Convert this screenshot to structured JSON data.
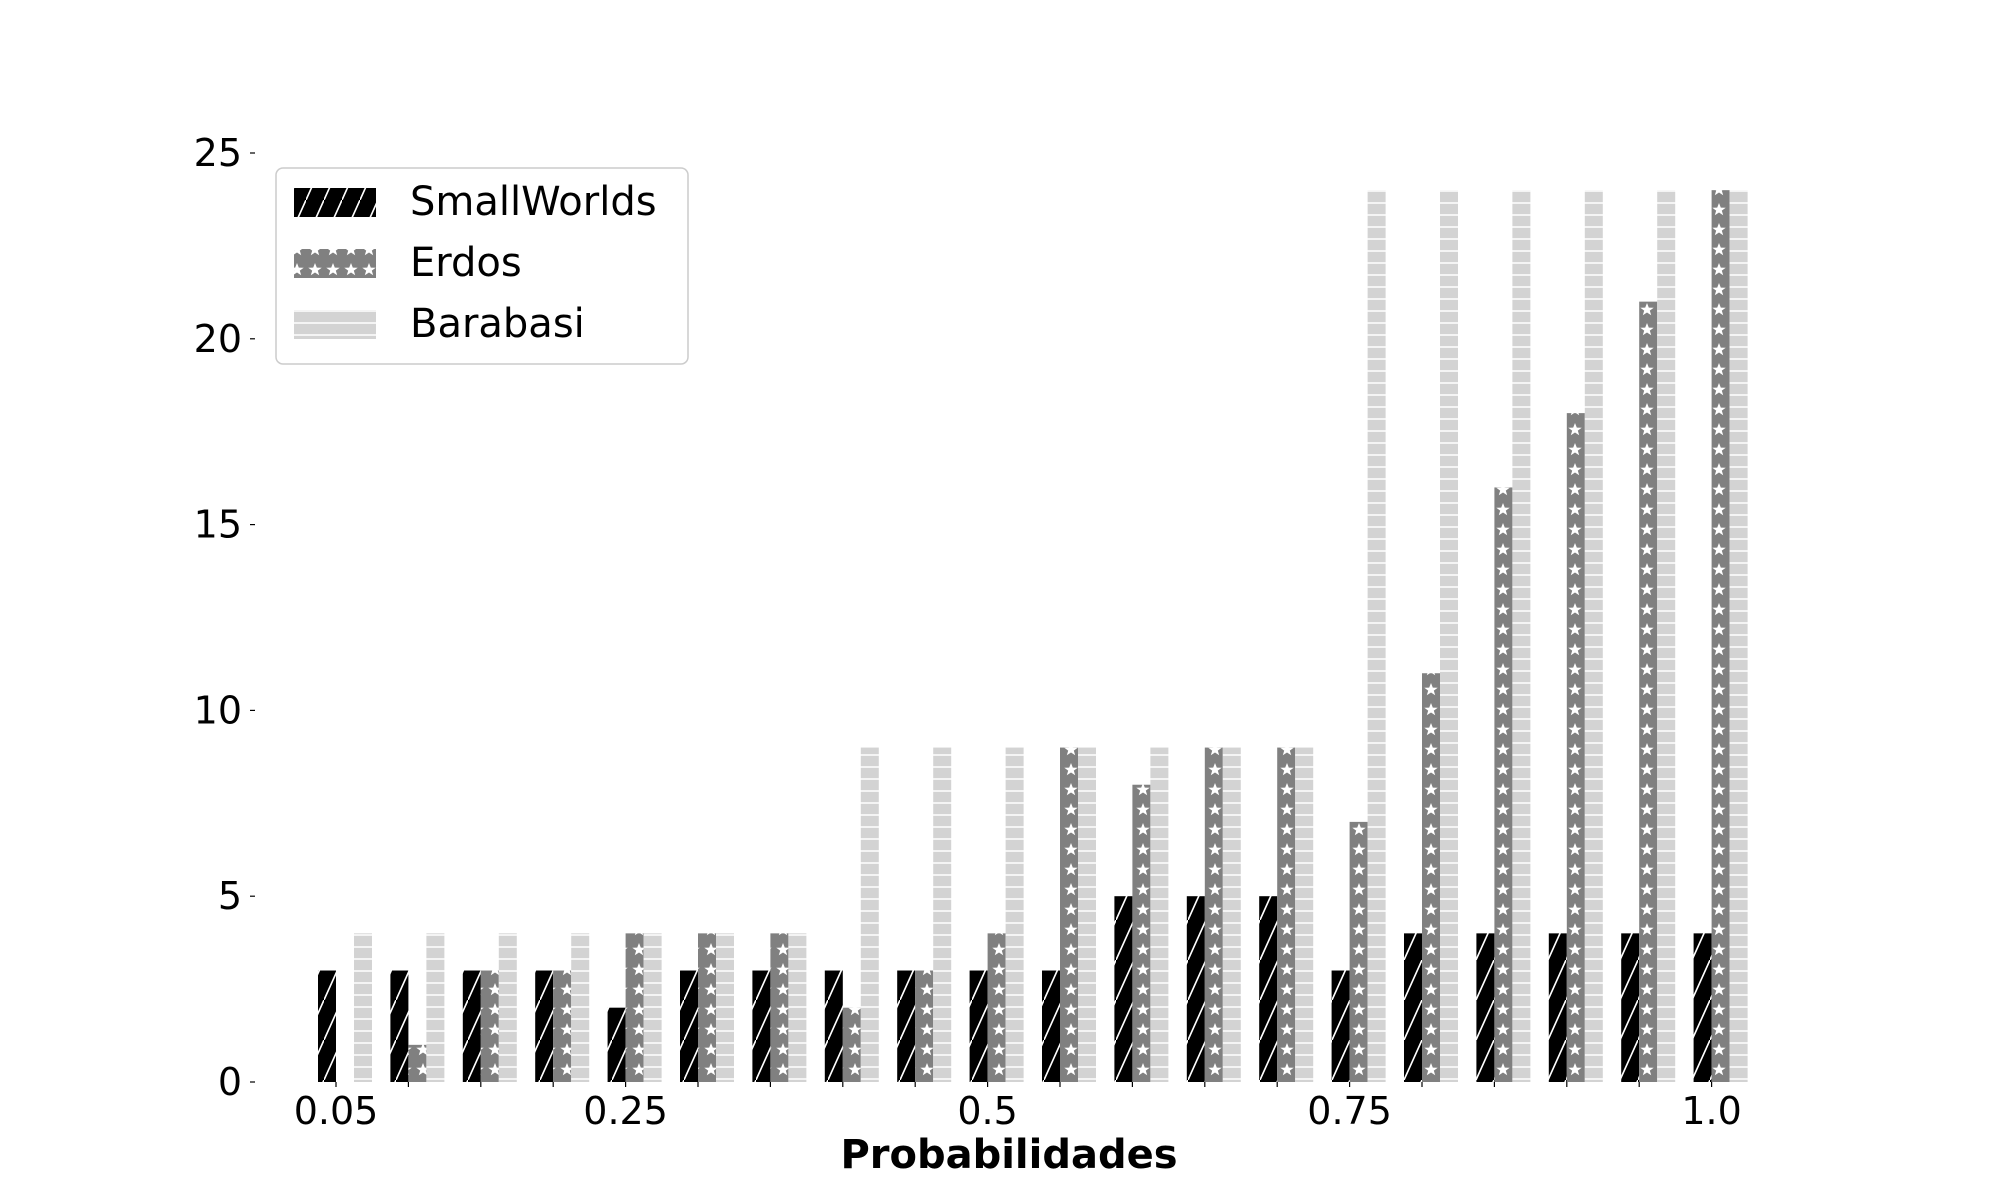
{
  "chart_data": {
    "type": "bar",
    "xlabel": "Probabilidades",
    "ylabel": "",
    "ylim": [
      0,
      25
    ],
    "yticks": [
      0,
      5,
      10,
      15,
      20,
      25
    ],
    "x": [
      0.05,
      0.1,
      0.15,
      0.2,
      0.25,
      0.3,
      0.35,
      0.4,
      0.45,
      0.5,
      0.55,
      0.6,
      0.65,
      0.7,
      0.75,
      0.8,
      0.85,
      0.9,
      0.95,
      1.0
    ],
    "xtick_labels": [
      {
        "label": "0.05",
        "x": 0.05
      },
      {
        "label": "0.25",
        "x": 0.25
      },
      {
        "label": "0.5",
        "x": 0.5
      },
      {
        "label": "0.75",
        "x": 0.75
      },
      {
        "label": "1.0",
        "x": 1.0
      }
    ],
    "grid": false,
    "legend_position": "top-left",
    "series": [
      {
        "name": "SmallWorlds",
        "color": "#000000",
        "pattern": "diagonal-hatch",
        "values": [
          3,
          3,
          3,
          3,
          2,
          3,
          3,
          3,
          3,
          3,
          3,
          5,
          5,
          5,
          3,
          4,
          4,
          4,
          4,
          4
        ]
      },
      {
        "name": "Erdos",
        "color": "#808080",
        "pattern": "star-hatch",
        "values": [
          0,
          1,
          3,
          3,
          4,
          4,
          4,
          2,
          3,
          4,
          9,
          8,
          9,
          9,
          7,
          11,
          16,
          18,
          21,
          24
        ]
      },
      {
        "name": "Barabasi",
        "color": "#d3d3d3",
        "pattern": "horizontal-hatch",
        "values": [
          4,
          4,
          4,
          4,
          4,
          4,
          4,
          9,
          9,
          9,
          9,
          9,
          9,
          9,
          24,
          24,
          24,
          24,
          24,
          24
        ]
      }
    ]
  }
}
